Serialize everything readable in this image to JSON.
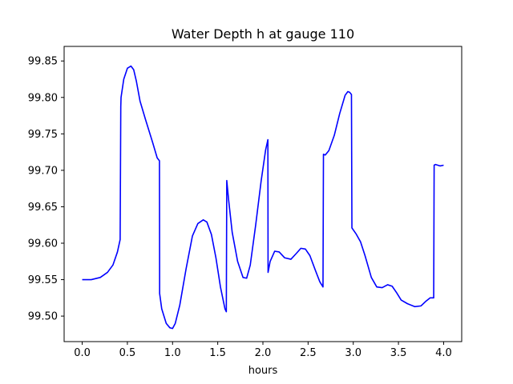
{
  "chart_data": {
    "type": "line",
    "title": "Water Depth h at gauge 110",
    "xlabel": "hours",
    "ylabel": "",
    "xlim": [
      -0.2,
      4.2
    ],
    "ylim": [
      99.465,
      99.87
    ],
    "xticks": [
      0.0,
      0.5,
      1.0,
      1.5,
      2.0,
      2.5,
      3.0,
      3.5,
      4.0
    ],
    "xtick_labels": [
      "0.0",
      "0.5",
      "1.0",
      "1.5",
      "2.0",
      "2.5",
      "3.0",
      "3.5",
      "4.0"
    ],
    "yticks": [
      99.5,
      99.55,
      99.6,
      99.65,
      99.7,
      99.75,
      99.8,
      99.85
    ],
    "ytick_labels": [
      "99.50",
      "99.55",
      "99.60",
      "99.65",
      "99.70",
      "99.75",
      "99.80",
      "99.85"
    ],
    "grid": false,
    "series": [
      {
        "color": "#0000ff",
        "x": [
          0.0,
          0.1,
          0.2,
          0.28,
          0.34,
          0.39,
          0.42,
          0.427,
          0.43,
          0.46,
          0.5,
          0.54,
          0.57,
          0.6,
          0.64,
          0.7,
          0.78,
          0.83,
          0.855,
          0.857,
          0.88,
          0.93,
          0.97,
          1.0,
          1.03,
          1.08,
          1.15,
          1.22,
          1.28,
          1.34,
          1.38,
          1.43,
          1.48,
          1.53,
          1.58,
          1.595,
          1.6,
          1.62,
          1.66,
          1.72,
          1.78,
          1.82,
          1.86,
          1.92,
          1.98,
          2.03,
          2.055,
          2.057,
          2.08,
          2.13,
          2.18,
          2.24,
          2.31,
          2.37,
          2.42,
          2.47,
          2.52,
          2.58,
          2.63,
          2.665,
          2.67,
          2.69,
          2.73,
          2.79,
          2.85,
          2.91,
          2.94,
          2.96,
          2.98,
          2.985,
          3.03,
          3.08,
          3.13,
          3.2,
          3.26,
          3.32,
          3.38,
          3.43,
          3.48,
          3.53,
          3.6,
          3.68,
          3.75,
          3.8,
          3.85,
          3.89,
          3.895,
          3.91,
          3.96,
          4.0
        ],
        "y": [
          99.55,
          99.55,
          99.553,
          99.56,
          99.57,
          99.588,
          99.605,
          99.787,
          99.8,
          99.825,
          99.84,
          99.843,
          99.838,
          99.822,
          99.795,
          99.77,
          99.738,
          99.717,
          99.713,
          99.531,
          99.51,
          99.49,
          99.484,
          99.483,
          99.49,
          99.515,
          99.565,
          99.61,
          99.627,
          99.632,
          99.629,
          99.612,
          99.58,
          99.54,
          99.51,
          99.506,
          99.686,
          99.66,
          99.615,
          99.575,
          99.553,
          99.552,
          99.57,
          99.625,
          99.685,
          99.728,
          99.742,
          99.56,
          99.575,
          99.589,
          99.588,
          99.58,
          99.578,
          99.586,
          99.593,
          99.592,
          99.583,
          99.563,
          99.547,
          99.54,
          99.722,
          99.721,
          99.727,
          99.748,
          99.778,
          99.803,
          99.808,
          99.807,
          99.804,
          99.621,
          99.613,
          99.602,
          99.583,
          99.553,
          99.54,
          99.539,
          99.543,
          99.541,
          99.532,
          99.522,
          99.517,
          99.513,
          99.514,
          99.52,
          99.525,
          99.525,
          99.707,
          99.708,
          99.706,
          99.707
        ]
      }
    ]
  }
}
